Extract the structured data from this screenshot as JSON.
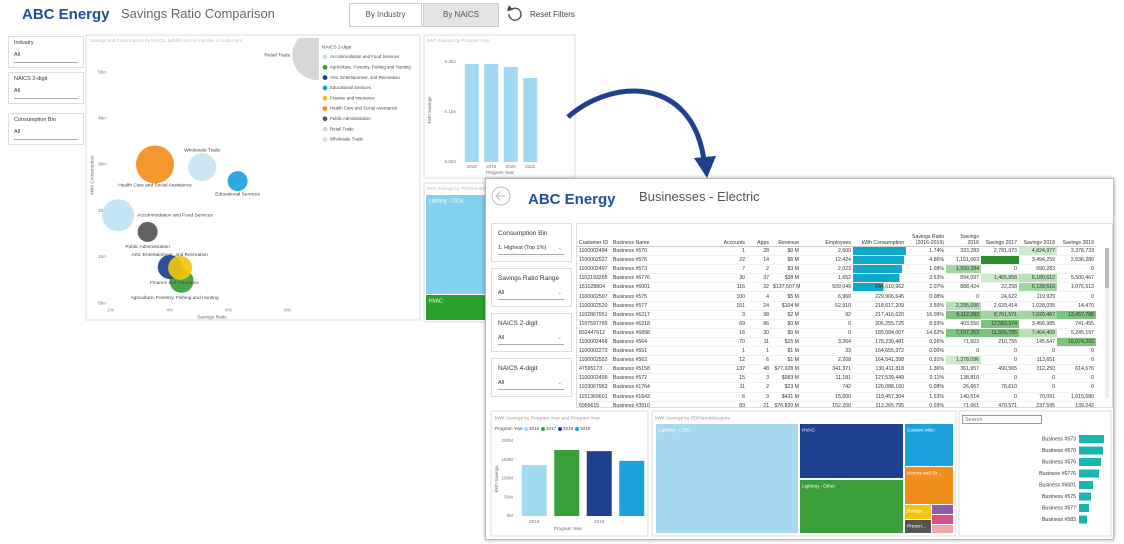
{
  "back": {
    "brand": "ABC Energy",
    "title": "Savings Ratio Comparison",
    "buttons": [
      "By Industry",
      "By NAICS"
    ],
    "reset": "Reset Filters",
    "filters": [
      {
        "label": "Industry",
        "value": "All"
      },
      {
        "label": "NAICS 2-digit",
        "value": "All"
      },
      {
        "label": "Consumption Bin",
        "value": "All"
      }
    ],
    "bubble_chart": {
      "type": "scatter",
      "title": "Savings and Consumption by NAICS, Bubble size on number of customers",
      "x_label": "Savings Ratio",
      "y_label": "kWh Consumption",
      "legend_title": "NAICS 2-digit",
      "xlim": [
        1.5,
        9.5
      ],
      "xticks": [
        {
          "value": 2,
          "label": "2%"
        },
        {
          "value": 4,
          "label": "4%"
        },
        {
          "value": 6,
          "label": "6%"
        },
        {
          "value": 8,
          "label": "8%"
        }
      ],
      "ylim": [
        0,
        5.5
      ],
      "yticks": [
        {
          "value": 0,
          "label": "0bn"
        },
        {
          "value": 1,
          "label": "1bn"
        },
        {
          "value": 2,
          "label": "2bn"
        },
        {
          "value": 3,
          "label": "3bn"
        },
        {
          "value": 4,
          "label": "4bn"
        },
        {
          "value": 5,
          "label": "5bn"
        }
      ],
      "series": [
        {
          "name": "Accommodation and Food Services",
          "color": "#bfe3f5",
          "x": [
            2.25
          ],
          "values": [
            1.9
          ],
          "sizes": [
            256
          ]
        },
        {
          "name": "Agriculture, Forestry, Fishing and Hunting",
          "color": "#3a9e3a",
          "x": [
            4.4
          ],
          "values": [
            0.48
          ],
          "sizes": [
            144
          ]
        },
        {
          "name": "Arts, Entertainment, and Recreation",
          "color": "#1f3f8f",
          "x": [
            4.0
          ],
          "values": [
            0.78
          ],
          "sizes": [
            144
          ]
        },
        {
          "name": "Educational Services",
          "color": "#1da1dc",
          "x": [
            6.3
          ],
          "values": [
            2.64
          ],
          "sizes": [
            100
          ]
        },
        {
          "name": "Finance and Insurance",
          "color": "#f2c511",
          "x": [
            4.35
          ],
          "values": [
            0.76
          ],
          "sizes": [
            144
          ]
        },
        {
          "name": "Health Care and Social Assistance",
          "color": "#f28e1c",
          "x": [
            3.5
          ],
          "values": [
            3.0
          ],
          "sizes": [
            361
          ]
        },
        {
          "name": "Public Administration",
          "color": "#555555",
          "x": [
            3.25
          ],
          "values": [
            1.54
          ],
          "sizes": [
            100
          ]
        },
        {
          "name": "Retail Trade",
          "color": "#d4d4d4",
          "x": [
            9.0
          ],
          "values": [
            5.37
          ],
          "sizes": [
            625
          ]
        },
        {
          "name": "Wholesale Trade",
          "color": "#c8e4f2",
          "x": [
            5.1
          ],
          "values": [
            2.94
          ],
          "sizes": [
            196
          ]
        }
      ]
    },
    "program_chart": {
      "type": "bar",
      "title": "kWh Savings by Program Year",
      "y_label": "kWh Savings",
      "x_label": "Program Year",
      "color": "#9fd9f2",
      "categories": [
        "2018",
        "2019",
        "2020",
        "2022"
      ],
      "values": [
        0.196,
        0.196,
        0.19,
        0.168
      ],
      "ylim": [
        0,
        0.2
      ],
      "yticks": [
        {
          "value": 0,
          "label": "0.0bn"
        },
        {
          "value": 0.1,
          "label": "0.1bn"
        },
        {
          "value": 0.2,
          "label": "0.2bn"
        }
      ]
    },
    "treemap": {
      "title": "kWh Savings by PDParentMeasure",
      "tiles": [
        "Lighting - LEDs",
        "HVAC"
      ]
    }
  },
  "front": {
    "brand": "ABC Energy",
    "title": "Businesses - Electric",
    "filters": [
      {
        "label": "Consumption Bin",
        "value": "1. Highest (Top 1%)"
      },
      {
        "label": "Savings Ratio Range",
        "value": "All"
      },
      {
        "label": "NAICS 2-digit",
        "value": "All"
      },
      {
        "label": "NAICS 4-digit",
        "value": "All"
      }
    ],
    "table": {
      "columns": [
        "Customer ID",
        "Business Name",
        "Accounts",
        "Apps",
        "Revenue",
        "Employees",
        "kWh Consumption",
        "Savings Ratio (2016-2019)",
        "Savings 2016",
        "Savings 2017",
        "Savings 2018",
        "Savings 2019"
      ],
      "rows": [
        [
          "1100002484",
          "Business #570",
          "1",
          "28",
          "$0 M",
          "2,500",
          null,
          "1.74%",
          "333,283",
          "2,781,073",
          "4,824,977",
          "3,378,733"
        ],
        [
          "1100002527",
          "Business #576",
          "22",
          "14",
          "$6 M",
          "12,424",
          null,
          "4.86%",
          "1,151,063",
          null,
          "3,494,259",
          "2,536,280"
        ],
        [
          "1100002497",
          "Business #573",
          "7",
          "2",
          "$3 M",
          "2,023",
          null,
          "1.08%",
          "1,550,284",
          "0",
          "690,283",
          "0"
        ],
        [
          "1102193265",
          "Business #6776",
          "30",
          "37",
          "$38 M",
          "1,652",
          null,
          "3.53%",
          "894,097",
          "1,465,858",
          "6,180,612",
          "5,500,467"
        ],
        [
          "151028804",
          "Business #6001",
          "116",
          "32",
          "$137,507 M",
          "509,049",
          "244,610,962",
          "2.07%",
          "888,424",
          "22,258",
          "6,139,516",
          "1,076,513"
        ],
        [
          "1100002507",
          "Business #575",
          "100",
          "4",
          "$5 M",
          "6,960",
          "229,906,645",
          "0.08%",
          "0",
          "24,622",
          "119,929",
          "0"
        ],
        [
          "1100002520",
          "Business #577",
          "151",
          "24",
          "$104 M",
          "52,910",
          "218,617,209",
          "3.59%",
          "2,295,096",
          "2,629,414",
          "1,028,035",
          "14,470"
        ],
        [
          "1102867951",
          "Business #6217",
          "3",
          "38",
          "$2 M",
          "92",
          "217,416,620",
          "16.09%",
          "5,112,393",
          "8,761,571",
          "7,620,467",
          "13,457,788"
        ],
        [
          "1107597769",
          "Business #6318",
          "69",
          "86",
          "$0 M",
          "0",
          "206,255,725",
          "8.93%",
          "403,550",
          "12,583,374",
          "3,456,985",
          "741,455"
        ],
        [
          "832447612",
          "Business #6898",
          "16",
          "30",
          "$0 M",
          "0",
          "185,084,007",
          "14.62%",
          "7,107,363",
          "11,555,785",
          "7,404,409",
          "5,245,197"
        ],
        [
          "1100002468",
          "Business #564",
          "70",
          "11",
          "$15 M",
          "3,264",
          "178,230,481",
          "0.26%",
          "71,503",
          "210,755",
          "145,647",
          "16,074,293"
        ],
        [
          "1100002273",
          "Business #551",
          "1",
          "1",
          "$1 M",
          "33",
          "164,655,372",
          "0.00%",
          "0",
          "0",
          "0",
          "0"
        ],
        [
          "1100002552",
          "Business #563",
          "12",
          "6",
          "$1 M",
          "2,208",
          "164,541,398",
          "0.91%",
          "1,378,096",
          "0",
          "113,651",
          "0"
        ],
        [
          "47595173",
          "Business #5158",
          "137",
          "48",
          "$77,928 M",
          "341,371",
          "130,411,818",
          "1.36%",
          "361,957",
          "490,565",
          "312,250",
          "614,676"
        ],
        [
          "1100002499",
          "Business #572",
          "15",
          "3",
          "$983 M",
          "11,181",
          "127,539,449",
          "0.11%",
          "138,810",
          "0",
          "0",
          "0"
        ],
        [
          "1103067963",
          "Business #1764",
          "11",
          "2",
          "$23 M",
          "742",
          "126,088,160",
          "0.08%",
          "26,667",
          "78,610",
          "0",
          "0"
        ],
        [
          "1151369601",
          "Business #1643",
          "6",
          "3",
          "$431 M",
          "15,000",
          "119,457,304",
          "1.53%",
          "140,514",
          "0",
          "70,091",
          "1,615,680"
        ],
        [
          "6959615",
          "Business #3910",
          "83",
          "21",
          "$76,820 M",
          "152,200",
          "113,265,795",
          "0.03%",
          "71,061",
          "470,571",
          "237,595",
          "139,242"
        ],
        [
          "1100002517",
          "Business #566",
          "25",
          "33",
          "$0 M",
          "5,016",
          "98,262,774",
          "6.08%",
          "0",
          "2,071,781",
          "1,244,277",
          "2,468,377"
        ]
      ]
    },
    "program_chart": {
      "type": "bar",
      "title": "kWh Savings by Program Year and Program Year",
      "y_label": "kWh Savings",
      "x_label": "Program Year",
      "legend_title": "Program Year",
      "legend": [
        {
          "name": "2016",
          "color": "#9fd9f2"
        },
        {
          "name": "2017",
          "color": "#3a9e3a"
        },
        {
          "name": "2018",
          "color": "#1f3f8f"
        },
        {
          "name": "2019",
          "color": "#1da1dc"
        }
      ],
      "categories": [
        "2016",
        null,
        "2018",
        null
      ],
      "values": [
        136,
        176,
        173,
        147
      ],
      "ylim": [
        0,
        200
      ],
      "yticks": [
        {
          "value": 0,
          "label": "0M"
        },
        {
          "value": 50,
          "label": "50M"
        },
        {
          "value": 100,
          "label": "100M"
        },
        {
          "value": 150,
          "label": "150M"
        },
        {
          "value": 200,
          "label": "200M"
        }
      ]
    },
    "treemap": {
      "title": "kWh Savings by PDParentMeasure",
      "tiles": [
        "Lighting - LEDs",
        "HVAC",
        "Custom Misc",
        "Lighting - Other",
        "Motors and Dr...",
        "Refrige...",
        "Prescri..."
      ]
    },
    "business_chart": {
      "type": "bar",
      "search": "Search",
      "color": "#19b5b0",
      "categories": [
        "Business #573",
        "Business #570",
        "Business #576",
        "Business #6776",
        "Business #6001",
        "Business #575",
        "Business #577",
        "Business #583"
      ],
      "values": [
        25,
        24,
        22,
        20,
        14,
        12,
        10,
        8
      ],
      "xlim": [
        0,
        25
      ]
    }
  }
}
